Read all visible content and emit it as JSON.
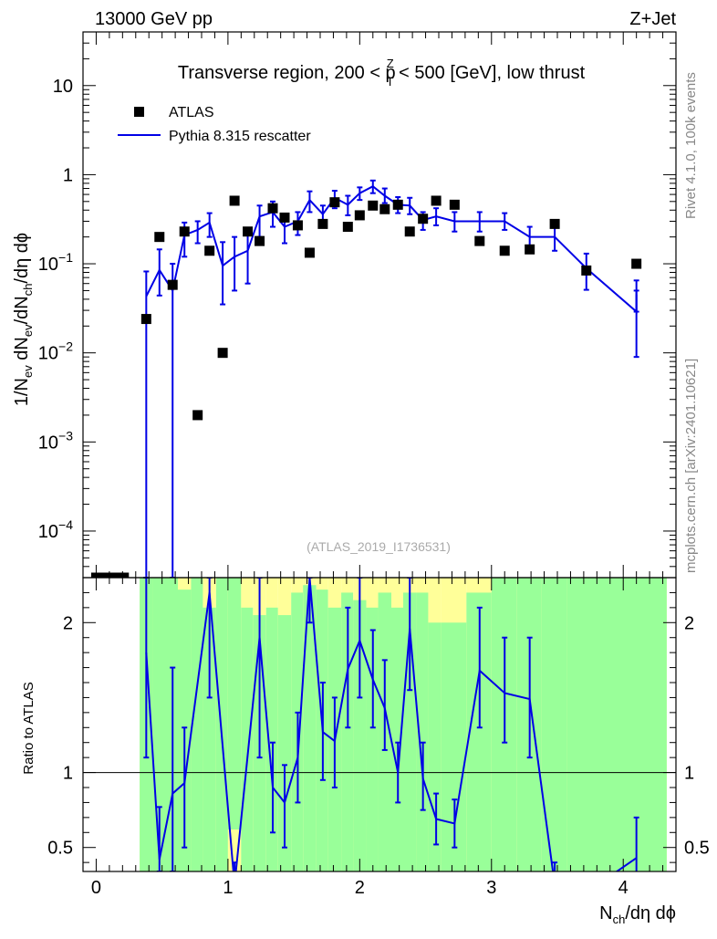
{
  "header": {
    "left": "13000 GeV pp",
    "right": "Z+Jet"
  },
  "plot_title": {
    "pre": "Transverse region, 200 < p",
    "sup": "Z",
    "sub": "T",
    "post": " < 500 [GeV], low thrust"
  },
  "side_labels": {
    "rivet": "Rivet 4.1.0,  100k events",
    "mcplots": "mcplots.cern.ch [arXiv:2401.10621]"
  },
  "analysis_id": "(ATLAS_2019_I1736531)",
  "y_label_main": {
    "p1": "1/N",
    "s1": "ev",
    "p2": " dN",
    "s2": "ev",
    "p3": "/dN",
    "s3": "ch",
    "p4": "/dη dϕ"
  },
  "y_label_ratio": "Ratio to ATLAS",
  "x_label": {
    "p1": "N",
    "s1": "ch",
    "p2": "/dη dϕ"
  },
  "legend": {
    "data_label": "ATLAS",
    "mc_label": "Pythia 8.315 rescatter"
  },
  "colors": {
    "data": "#000000",
    "mc": "#0000e6",
    "band_inner": "#99ff99",
    "band_outer": "#ffff99"
  },
  "chart_data": {
    "type": "scatter",
    "x_range": [
      -0.1,
      4.4
    ],
    "x_ticks": [
      0,
      1,
      2,
      3,
      4
    ],
    "main": {
      "y_scale": "log",
      "y_range": [
        3e-05,
        40
      ],
      "y_ticks": [
        {
          "value": 0.0001,
          "base": "10",
          "exp": "−4"
        },
        {
          "value": 0.001,
          "base": "10",
          "exp": "−3"
        },
        {
          "value": 0.01,
          "base": "10",
          "exp": "−2"
        },
        {
          "value": 0.1,
          "base": "10",
          "exp": "−1"
        },
        {
          "value": 1,
          "base": "1",
          "exp": ""
        },
        {
          "value": 10,
          "base": "10",
          "exp": ""
        }
      ]
    },
    "ratio": {
      "y_scale": "linear",
      "y_range": [
        0.34,
        2.3
      ],
      "y_ticks": [
        {
          "value": 0.5,
          "label": "0.5"
        },
        {
          "value": 1,
          "label": "1"
        },
        {
          "value": 2,
          "label": "2"
        }
      ]
    },
    "atlas": {
      "name": "ATLAS",
      "points": [
        [
          0.0,
          3e-05
        ],
        [
          0.07,
          3e-05
        ],
        [
          0.14,
          3e-05
        ],
        [
          0.21,
          3e-05
        ],
        [
          0.38,
          0.024
        ],
        [
          0.48,
          0.2
        ],
        [
          0.58,
          0.058
        ],
        [
          0.67,
          0.23
        ],
        [
          0.77,
          0.002
        ],
        [
          0.86,
          0.14
        ],
        [
          0.96,
          0.01
        ],
        [
          1.05,
          0.51
        ],
        [
          1.15,
          0.23
        ],
        [
          1.24,
          0.18
        ],
        [
          1.34,
          0.42
        ],
        [
          1.43,
          0.33
        ],
        [
          1.53,
          0.27
        ],
        [
          1.62,
          0.133
        ],
        [
          1.72,
          0.28
        ],
        [
          1.81,
          0.49
        ],
        [
          1.91,
          0.26
        ],
        [
          2.0,
          0.35
        ],
        [
          2.1,
          0.45
        ],
        [
          2.19,
          0.41
        ],
        [
          2.29,
          0.46
        ],
        [
          2.38,
          0.23
        ],
        [
          2.48,
          0.32
        ],
        [
          2.58,
          0.51
        ],
        [
          2.72,
          0.46
        ],
        [
          2.91,
          0.18
        ],
        [
          3.1,
          0.14
        ],
        [
          3.29,
          0.145
        ],
        [
          3.48,
          0.28
        ],
        [
          3.72,
          0.084
        ],
        [
          4.1,
          0.1
        ]
      ]
    },
    "pythia": {
      "name": "Pythia 8.315 rescatter",
      "points": [
        {
          "x": 0.38,
          "y": 0.043,
          "lo": 3e-05,
          "hi": 0.082
        },
        {
          "x": 0.48,
          "y": 0.085,
          "lo": 0.044,
          "hi": 0.145
        },
        {
          "x": 0.58,
          "y": 0.05,
          "lo": 3e-05,
          "hi": 0.1
        },
        {
          "x": 0.67,
          "y": 0.21,
          "lo": 0.12,
          "hi": 0.29
        },
        {
          "x": 0.77,
          "y": 0.24,
          "lo": 0.17,
          "hi": 0.3
        },
        {
          "x": 0.86,
          "y": 0.29,
          "lo": 0.2,
          "hi": 0.37
        },
        {
          "x": 0.96,
          "y": 0.095,
          "lo": 0.035,
          "hi": 0.175
        },
        {
          "x": 1.05,
          "y": 0.12,
          "lo": 0.05,
          "hi": 0.2
        },
        {
          "x": 1.15,
          "y": 0.14,
          "lo": 0.06,
          "hi": 0.23
        },
        {
          "x": 1.24,
          "y": 0.34,
          "lo": 0.2,
          "hi": 0.45
        },
        {
          "x": 1.34,
          "y": 0.38,
          "lo": 0.26,
          "hi": 0.5
        },
        {
          "x": 1.43,
          "y": 0.26,
          "lo": 0.17,
          "hi": 0.35
        },
        {
          "x": 1.53,
          "y": 0.3,
          "lo": 0.21,
          "hi": 0.38
        },
        {
          "x": 1.62,
          "y": 0.52,
          "lo": 0.38,
          "hi": 0.65
        },
        {
          "x": 1.72,
          "y": 0.36,
          "lo": 0.27,
          "hi": 0.45
        },
        {
          "x": 1.81,
          "y": 0.55,
          "lo": 0.42,
          "hi": 0.66
        },
        {
          "x": 1.91,
          "y": 0.46,
          "lo": 0.35,
          "hi": 0.58
        },
        {
          "x": 2.0,
          "y": 0.62,
          "lo": 0.52,
          "hi": 0.72
        },
        {
          "x": 2.1,
          "y": 0.74,
          "lo": 0.62,
          "hi": 0.86
        },
        {
          "x": 2.19,
          "y": 0.58,
          "lo": 0.48,
          "hi": 0.7
        },
        {
          "x": 2.29,
          "y": 0.46,
          "lo": 0.37,
          "hi": 0.56
        },
        {
          "x": 2.38,
          "y": 0.45,
          "lo": 0.36,
          "hi": 0.55
        },
        {
          "x": 2.48,
          "y": 0.31,
          "lo": 0.24,
          "hi": 0.38
        },
        {
          "x": 2.58,
          "y": 0.34,
          "lo": 0.27,
          "hi": 0.42
        },
        {
          "x": 2.72,
          "y": 0.3,
          "lo": 0.23,
          "hi": 0.38
        },
        {
          "x": 2.91,
          "y": 0.3,
          "lo": 0.23,
          "hi": 0.38
        },
        {
          "x": 3.1,
          "y": 0.3,
          "lo": 0.24,
          "hi": 0.37
        },
        {
          "x": 3.29,
          "y": 0.2,
          "lo": 0.15,
          "hi": 0.26
        },
        {
          "x": 3.48,
          "y": 0.2,
          "lo": 0.14,
          "hi": 0.26
        },
        {
          "x": 3.72,
          "y": 0.089,
          "lo": 0.051,
          "hi": 0.13
        },
        {
          "x": 4.1,
          "y": 0.029,
          "lo": 0.009,
          "hi": 0.05
        },
        {
          "x": 4.1,
          "y": 0.045,
          "lo": 0.029,
          "hi": 0.065
        }
      ]
    },
    "pythia_ratio": {
      "points": [
        {
          "x": 0.38,
          "y": 1.8,
          "lo": 1.1,
          "hi": 2.3
        },
        {
          "x": 0.48,
          "y": 0.42,
          "lo": 0.34,
          "hi": 0.77
        },
        {
          "x": 0.58,
          "y": 0.86,
          "lo": 0.34,
          "hi": 1.7
        },
        {
          "x": 0.67,
          "y": 0.93,
          "lo": 0.5,
          "hi": 1.3
        },
        {
          "x": 0.86,
          "y": 2.2,
          "lo": 1.5,
          "hi": 2.3
        },
        {
          "x": 1.05,
          "y": 0.25,
          "lo": 0.1,
          "hi": 0.4
        },
        {
          "x": 1.24,
          "y": 1.9,
          "lo": 1.1,
          "hi": 2.3
        },
        {
          "x": 1.34,
          "y": 0.9,
          "lo": 0.6,
          "hi": 1.2
        },
        {
          "x": 1.43,
          "y": 0.8,
          "lo": 0.5,
          "hi": 1.05
        },
        {
          "x": 1.53,
          "y": 1.1,
          "lo": 0.8,
          "hi": 1.4
        },
        {
          "x": 1.62,
          "y": 2.3,
          "lo": 2.0,
          "hi": 2.3
        },
        {
          "x": 1.72,
          "y": 1.27,
          "lo": 0.95,
          "hi": 1.6
        },
        {
          "x": 1.81,
          "y": 1.21,
          "lo": 0.9,
          "hi": 1.5
        },
        {
          "x": 1.91,
          "y": 1.69,
          "lo": 1.3,
          "hi": 2.1
        },
        {
          "x": 2.0,
          "y": 1.88,
          "lo": 1.5,
          "hi": 2.3
        },
        {
          "x": 2.1,
          "y": 1.62,
          "lo": 1.3,
          "hi": 1.95
        },
        {
          "x": 2.19,
          "y": 1.43,
          "lo": 1.15,
          "hi": 1.75
        },
        {
          "x": 2.29,
          "y": 1.0,
          "lo": 0.8,
          "hi": 1.2
        },
        {
          "x": 2.38,
          "y": 1.96,
          "lo": 1.55,
          "hi": 2.3
        },
        {
          "x": 2.48,
          "y": 0.96,
          "lo": 0.75,
          "hi": 1.2
        },
        {
          "x": 2.58,
          "y": 0.69,
          "lo": 0.52,
          "hi": 0.86
        },
        {
          "x": 2.72,
          "y": 0.66,
          "lo": 0.5,
          "hi": 0.82
        },
        {
          "x": 2.91,
          "y": 1.68,
          "lo": 1.3,
          "hi": 2.1
        },
        {
          "x": 3.1,
          "y": 1.53,
          "lo": 1.2,
          "hi": 1.9
        },
        {
          "x": 3.29,
          "y": 1.49,
          "lo": 1.1,
          "hi": 1.9
        },
        {
          "x": 3.48,
          "y": 0.25,
          "lo": 0.1,
          "hi": 0.4
        },
        {
          "x": 3.72,
          "y": 0.2,
          "lo": 0.1,
          "hi": 0.3
        },
        {
          "x": 4.1,
          "y": 0.43,
          "lo": 0.3,
          "hi": 0.7
        }
      ]
    },
    "ratio_band": [
      {
        "x0": 0.33,
        "x1": 0.43,
        "inner": [
          0.34,
          2.3
        ],
        "outer": [
          0.34,
          2.3
        ]
      },
      {
        "x0": 0.43,
        "x1": 0.53,
        "inner": [
          0.34,
          2.3
        ],
        "outer": [
          0.34,
          2.3
        ]
      },
      {
        "x0": 0.53,
        "x1": 0.62,
        "inner": [
          0.34,
          2.3
        ],
        "outer": [
          0.34,
          2.3
        ]
      },
      {
        "x0": 0.62,
        "x1": 0.72,
        "inner": [
          0.34,
          2.22
        ],
        "outer": [
          0.34,
          2.3
        ]
      },
      {
        "x0": 0.72,
        "x1": 0.81,
        "inner": [
          0.34,
          2.3
        ],
        "outer": [
          0.34,
          2.3
        ]
      },
      {
        "x0": 0.81,
        "x1": 0.91,
        "inner": [
          0.34,
          2.1
        ],
        "outer": [
          0.34,
          2.3
        ]
      },
      {
        "x0": 0.91,
        "x1": 1.0,
        "inner": [
          0.34,
          2.3
        ],
        "outer": [
          0.34,
          2.3
        ]
      },
      {
        "x0": 1.0,
        "x1": 1.1,
        "inner": [
          0.62,
          2.3
        ],
        "outer": [
          0.34,
          2.3
        ]
      },
      {
        "x0": 1.1,
        "x1": 1.19,
        "inner": [
          0.34,
          2.1
        ],
        "outer": [
          0.34,
          2.3
        ]
      },
      {
        "x0": 1.19,
        "x1": 1.29,
        "inner": [
          0.34,
          2.05
        ],
        "outer": [
          0.34,
          2.3
        ]
      },
      {
        "x0": 1.29,
        "x1": 1.38,
        "inner": [
          0.34,
          2.1
        ],
        "outer": [
          0.34,
          2.3
        ]
      },
      {
        "x0": 1.38,
        "x1": 1.48,
        "inner": [
          0.34,
          2.05
        ],
        "outer": [
          0.34,
          2.3
        ]
      },
      {
        "x0": 1.48,
        "x1": 1.57,
        "inner": [
          0.34,
          2.2
        ],
        "outer": [
          0.34,
          2.3
        ]
      },
      {
        "x0": 1.57,
        "x1": 1.67,
        "inner": [
          0.34,
          2.25
        ],
        "outer": [
          0.34,
          2.3
        ]
      },
      {
        "x0": 1.67,
        "x1": 1.76,
        "inner": [
          0.34,
          2.22
        ],
        "outer": [
          0.34,
          2.3
        ]
      },
      {
        "x0": 1.76,
        "x1": 1.86,
        "inner": [
          0.34,
          2.1
        ],
        "outer": [
          0.34,
          2.3
        ]
      },
      {
        "x0": 1.86,
        "x1": 1.95,
        "inner": [
          0.34,
          2.2
        ],
        "outer": [
          0.34,
          2.3
        ]
      },
      {
        "x0": 1.95,
        "x1": 2.05,
        "inner": [
          0.34,
          2.15
        ],
        "outer": [
          0.34,
          2.3
        ]
      },
      {
        "x0": 2.05,
        "x1": 2.14,
        "inner": [
          0.34,
          2.1
        ],
        "outer": [
          0.34,
          2.3
        ]
      },
      {
        "x0": 2.14,
        "x1": 2.24,
        "inner": [
          0.34,
          2.2
        ],
        "outer": [
          0.34,
          2.3
        ]
      },
      {
        "x0": 2.24,
        "x1": 2.33,
        "inner": [
          0.34,
          2.1
        ],
        "outer": [
          0.34,
          2.3
        ]
      },
      {
        "x0": 2.33,
        "x1": 2.43,
        "inner": [
          0.34,
          2.2
        ],
        "outer": [
          0.34,
          2.3
        ]
      },
      {
        "x0": 2.43,
        "x1": 2.52,
        "inner": [
          0.34,
          2.2
        ],
        "outer": [
          0.34,
          2.3
        ]
      },
      {
        "x0": 2.52,
        "x1": 2.62,
        "inner": [
          0.34,
          2.0
        ],
        "outer": [
          0.34,
          2.3
        ]
      },
      {
        "x0": 2.62,
        "x1": 2.81,
        "inner": [
          0.34,
          2.0
        ],
        "outer": [
          0.34,
          2.3
        ]
      },
      {
        "x0": 2.81,
        "x1": 3.0,
        "inner": [
          0.34,
          2.2
        ],
        "outer": [
          0.34,
          2.3
        ]
      },
      {
        "x0": 3.0,
        "x1": 3.19,
        "inner": [
          0.34,
          2.3
        ],
        "outer": [
          0.34,
          2.3
        ]
      },
      {
        "x0": 3.19,
        "x1": 3.38,
        "inner": [
          0.34,
          2.3
        ],
        "outer": [
          0.34,
          2.3
        ]
      },
      {
        "x0": 3.38,
        "x1": 3.57,
        "inner": [
          0.34,
          2.3
        ],
        "outer": [
          0.34,
          2.3
        ]
      },
      {
        "x0": 3.57,
        "x1": 3.86,
        "inner": [
          0.34,
          2.3
        ],
        "outer": [
          0.34,
          2.3
        ]
      },
      {
        "x0": 3.86,
        "x1": 4.33,
        "inner": [
          0.34,
          2.3
        ],
        "outer": [
          0.34,
          2.3
        ]
      }
    ]
  }
}
